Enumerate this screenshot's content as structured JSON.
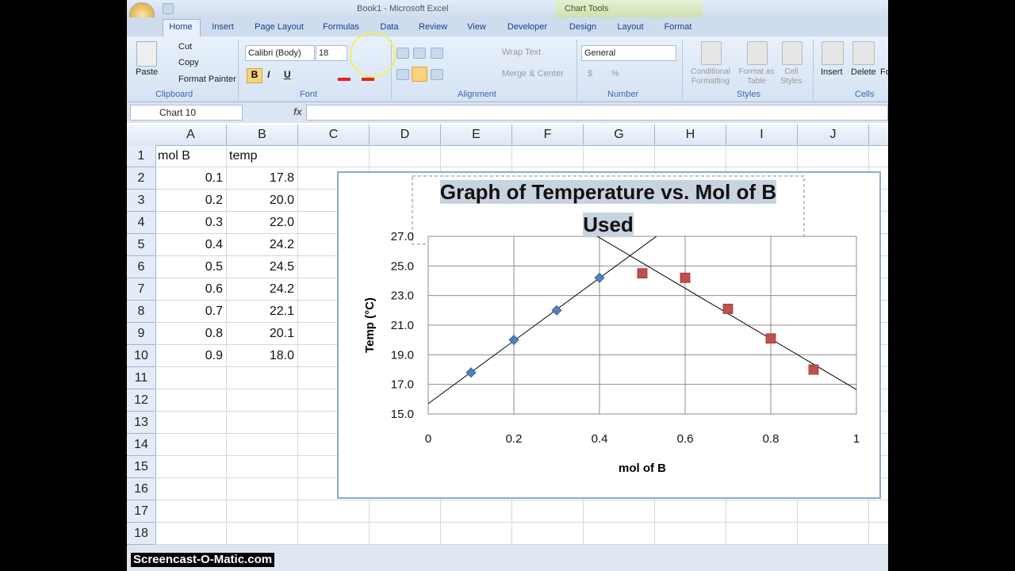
{
  "window": {
    "title": "Book1 - Microsoft Excel",
    "context_tab_group": "Chart Tools"
  },
  "ribbon": {
    "tabs": [
      "Home",
      "Insert",
      "Page Layout",
      "Formulas",
      "Data",
      "Review",
      "View",
      "Developer",
      "Design",
      "Layout",
      "Format"
    ],
    "clipboard": {
      "paste": "Paste",
      "cut": "Cut",
      "copy": "Copy",
      "format_painter": "Format Painter",
      "label": "Clipboard"
    },
    "font": {
      "name": "Calibri (Body)",
      "size": "18",
      "bold": "B",
      "italic": "I",
      "underline": "U",
      "label": "Font"
    },
    "alignment": {
      "wrap_text": "Wrap Text",
      "merge_center": "Merge & Center",
      "label": "Alignment"
    },
    "number": {
      "format": "General",
      "currency": "$",
      "percent": "%",
      "label": "Number"
    },
    "styles": {
      "conditional_formatting": "Conditional Formatting",
      "format_as_table": "Format as Table",
      "cell_styles": "Cell Styles",
      "label": "Styles"
    },
    "cells": {
      "insert": "Insert",
      "delete": "Delete",
      "format": "Fo",
      "label": "Cells"
    }
  },
  "formula_bar": {
    "name_box": "Chart 10",
    "function_icon": "fx"
  },
  "sheet": {
    "columns": [
      "A",
      "B",
      "C",
      "D",
      "E",
      "F",
      "G",
      "H",
      "I",
      "J"
    ],
    "row_numbers": [
      1,
      2,
      3,
      4,
      5,
      6,
      7,
      8,
      9,
      10,
      11,
      12,
      13,
      14,
      15,
      16,
      17,
      18
    ],
    "header": [
      "mol B",
      "temp"
    ],
    "rows": [
      [
        "0.1",
        "17.8"
      ],
      [
        "0.2",
        "20.0"
      ],
      [
        "0.3",
        "22.0"
      ],
      [
        "0.4",
        "24.2"
      ],
      [
        "0.5",
        "24.5"
      ],
      [
        "0.6",
        "24.2"
      ],
      [
        "0.7",
        "22.1"
      ],
      [
        "0.8",
        "20.1"
      ],
      [
        "0.9",
        "18.0"
      ]
    ]
  },
  "chart_data": {
    "type": "scatter",
    "title": "Graph of Temperature vs. Mol of B Used",
    "x_label": "mol of B",
    "y_label": "Temp (°C)",
    "xlim": [
      0,
      1
    ],
    "xticks": [
      0,
      0.2,
      0.4,
      0.6,
      0.8,
      1
    ],
    "ylim": [
      15,
      27
    ],
    "yticks": [
      {
        "value": 15,
        "label": "15.0"
      },
      {
        "value": 17,
        "label": "17.0"
      },
      {
        "value": 19,
        "label": "19.0"
      },
      {
        "value": 21,
        "label": "21.0"
      },
      {
        "value": 23,
        "label": "23.0"
      },
      {
        "value": 25,
        "label": "25.0"
      },
      {
        "value": 27,
        "label": "27.0"
      }
    ],
    "grid": true,
    "trendline": "linear",
    "series": [
      {
        "color": "#4f81bd",
        "marker": "diamond",
        "x": [
          0.1,
          0.2,
          0.3,
          0.4
        ],
        "values": [
          17.8,
          20.0,
          22.0,
          24.2
        ]
      },
      {
        "color": "#c0504d",
        "marker": "square",
        "x": [
          0.5,
          0.6,
          0.7,
          0.8,
          0.9
        ],
        "values": [
          24.5,
          24.2,
          22.1,
          20.1,
          18.0
        ]
      }
    ]
  },
  "watermark": "Screencast-O-Matic.com"
}
